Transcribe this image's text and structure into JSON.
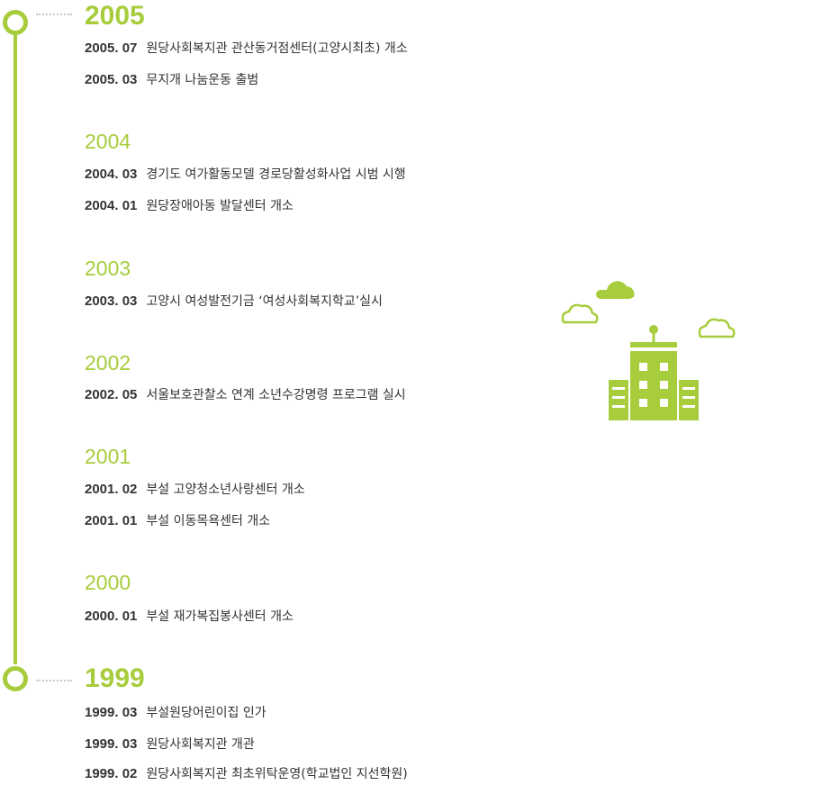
{
  "timeline": [
    {
      "year": "2005",
      "items": [
        {
          "date": "2005. 07",
          "text": "원당사회복지관 관산동거점센터(고양시최초) 개소"
        },
        {
          "date": "2005. 03",
          "text": "무지개 나눔운동 출범"
        }
      ]
    },
    {
      "year": "2004",
      "items": [
        {
          "date": "2004. 03",
          "text": "경기도 여가활동모델 경로당활성화사업 시범 시행"
        },
        {
          "date": "2004. 01",
          "text": "원당장애아동 발달센터 개소"
        }
      ]
    },
    {
      "year": "2003",
      "items": [
        {
          "date": "2003. 03",
          "text": "고양시 여성발전기금 ‘여성사회복지학교’실시"
        }
      ]
    },
    {
      "year": "2002",
      "items": [
        {
          "date": "2002. 05",
          "text": "서울보호관찰소 연계 소년수강명령 프로그램 실시"
        }
      ]
    },
    {
      "year": "2001",
      "items": [
        {
          "date": "2001. 02",
          "text": "부설 고양청소년사랑센터 개소"
        },
        {
          "date": "2001. 01",
          "text": "부설 이동목욕센터 개소"
        }
      ]
    },
    {
      "year": "2000",
      "items": [
        {
          "date": "2000. 01",
          "text": "부설 재가복집봉사센터 개소"
        }
      ]
    },
    {
      "year": "1999",
      "items": [
        {
          "date": "1999. 03",
          "text": "부설원당어린이집 인가"
        },
        {
          "date": "1999. 03",
          "text": "원당사회복지관 개관"
        },
        {
          "date": "1999. 02",
          "text": "원당사회복지관 최초위탁운영(학교법인 지선학원)"
        }
      ]
    }
  ],
  "colors": {
    "accent": "#a7cd3c",
    "text": "#333333",
    "dots": "#c8c8c8"
  },
  "icons": [
    "building-icon",
    "cloud-icon"
  ]
}
